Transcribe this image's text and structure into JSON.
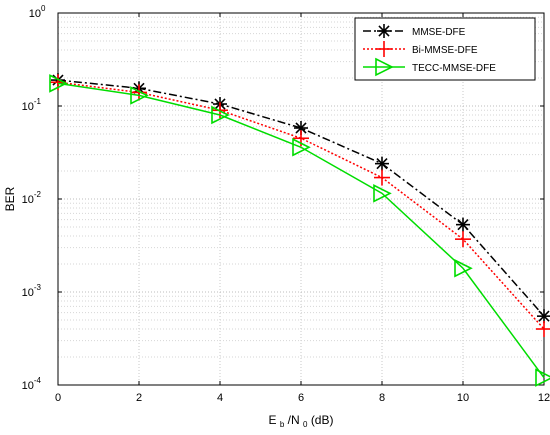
{
  "chart_data": {
    "type": "line",
    "xlabel": {
      "main": "E",
      "sub1": "b",
      "mid": "/N",
      "sub2": "0",
      "unit": " (dB)"
    },
    "ylabel": "BER",
    "xlim": [
      0,
      12
    ],
    "ylim": [
      0.0001,
      1
    ],
    "yscale": "log",
    "xticks": [
      "0",
      "2",
      "4",
      "6",
      "8",
      "10",
      "12"
    ],
    "yticks": [
      {
        "base": "10",
        "exp": "0"
      },
      {
        "base": "10",
        "exp": "-1"
      },
      {
        "base": "10",
        "exp": "-2"
      },
      {
        "base": "10",
        "exp": "-3"
      },
      {
        "base": "10",
        "exp": "-4"
      }
    ],
    "grid": true,
    "legend_position": "top-right",
    "x": [
      0,
      2,
      4,
      6,
      8,
      10,
      12
    ],
    "series": [
      {
        "name": "MMSE-DFE",
        "color": "#000000",
        "linestyle": "dashdot",
        "marker": "asterisk",
        "values": [
          0.19,
          0.155,
          0.105,
          0.058,
          0.024,
          0.0053,
          0.00055
        ]
      },
      {
        "name": "Bi-MMSE-DFE",
        "color": "#ff0000",
        "linestyle": "dotted",
        "marker": "plus",
        "values": [
          0.18,
          0.14,
          0.09,
          0.045,
          0.017,
          0.0037,
          0.0004
        ]
      },
      {
        "name": "TECC-MMSE-DFE",
        "color": "#00dd00",
        "linestyle": "solid",
        "marker": "triangle-right",
        "values": [
          0.175,
          0.13,
          0.08,
          0.036,
          0.0115,
          0.0018,
          0.00012
        ]
      }
    ]
  }
}
